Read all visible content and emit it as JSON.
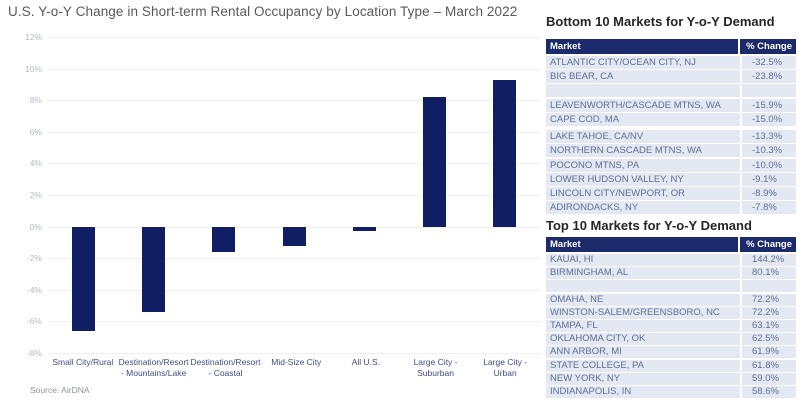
{
  "chart_data": {
    "type": "bar",
    "title": "U.S. Y-o-Y Change in Short-term Rental Occupancy by Location Type – March 2022",
    "categories": [
      "Small City/Rural",
      "Destination/Resort - Mountains/Lake",
      "Destination/Resort - Coastal",
      "Mid-Size City",
      "All U.S.",
      "Large City - Suburban",
      "Large City - Urban"
    ],
    "values": [
      -6.6,
      -5.4,
      -1.6,
      -1.2,
      -0.3,
      8.2,
      9.3
    ],
    "ylabel": "",
    "xlabel": "",
    "ylim": [
      -8,
      12
    ],
    "ytick_step": 2,
    "ytick_suffix": "%",
    "grid": true,
    "legend": "none",
    "bar_color": "#101f63",
    "source": "Source: AirDNA"
  },
  "tables": {
    "bottom": {
      "title": "Bottom 10 Markets for Y-o-Y Demand",
      "headers": [
        "Market",
        "% Change"
      ],
      "rows": [
        {
          "market": "ATLANTIC CITY/OCEAN CITY, NJ",
          "change": "-32.5%"
        },
        {
          "market": "BIG BEAR, CA",
          "change": "-23.8%"
        },
        {
          "market": "",
          "change": "",
          "blank": true
        },
        {
          "market": "LEAVENWORTH/CASCADE MTNS, WA",
          "change": "-15.9%"
        },
        {
          "market": "CAPE COD, MA",
          "change": "-15.0%",
          "gap_after": true
        },
        {
          "market": "LAKE TAHOE, CA/NV",
          "change": "-13.3%"
        },
        {
          "market": "NORTHERN CASCADE MTNS, WA",
          "change": "-10.3%"
        },
        {
          "market": "POCONO MTNS, PA",
          "change": "-10.0%"
        },
        {
          "market": "LOWER HUDSON VALLEY, NY",
          "change": "-9.1%"
        },
        {
          "market": "LINCOLN CITY/NEWPORT, OR",
          "change": "-8.9%"
        },
        {
          "market": "ADIRONDACKS, NY",
          "change": "-7.8%"
        }
      ]
    },
    "top": {
      "title": "Top 10 Markets for Y-o-Y Demand",
      "headers": [
        "Market",
        "% Change"
      ],
      "rows": [
        {
          "market": "KAUAI, HI",
          "change": "144.2%"
        },
        {
          "market": "BIRMINGHAM, AL",
          "change": "80.1%"
        },
        {
          "market": "",
          "change": "",
          "blank": true
        },
        {
          "market": "OMAHA, NE",
          "change": "72.2%"
        },
        {
          "market": "WINSTON-SALEM/GREENSBORO, NC",
          "change": "72.2%"
        },
        {
          "market": "TAMPA, FL",
          "change": "63.1%"
        },
        {
          "market": "OKLAHOMA CITY, OK",
          "change": "62.5%"
        },
        {
          "market": "ANN ARBOR, MI",
          "change": "61.9%"
        },
        {
          "market": "STATE COLLEGE, PA",
          "change": "61.8%"
        },
        {
          "market": "NEW YORK, NY",
          "change": "59.0%"
        },
        {
          "market": "INDIANAPOLIS, IN",
          "change": "58.6%"
        }
      ]
    }
  },
  "colors": {
    "bar_navy": "#101f63",
    "header_navy": "#1b2a6b",
    "row_bg": "#e3e8f3",
    "row_text": "#5f6f92",
    "chart_title": "#595959",
    "x_label": "#3f4e82",
    "y_label": "#b3b8c2",
    "gridline": "#edeff2"
  }
}
